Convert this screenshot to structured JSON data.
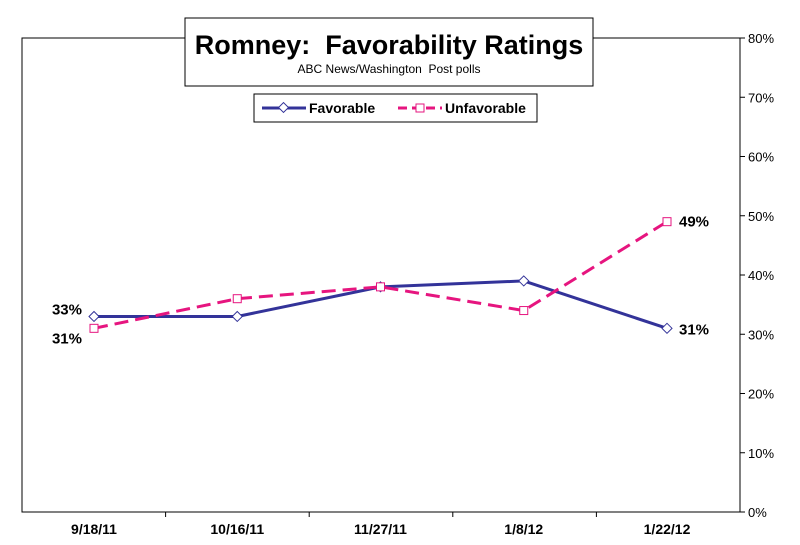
{
  "chart_data": {
    "type": "line",
    "title": "Romney:  Favorability Ratings",
    "subtitle": "ABC News/Washington  Post polls",
    "categories": [
      "9/18/11",
      "10/16/11",
      "11/27/11",
      "1/8/12",
      "1/22/12"
    ],
    "series": [
      {
        "name": "Favorable",
        "values": [
          33,
          33,
          38,
          39,
          31
        ],
        "color": "#333399",
        "dash": "solid",
        "marker": "diamond"
      },
      {
        "name": "Unfavorable",
        "values": [
          31,
          36,
          38,
          34,
          49
        ],
        "color": "#e6157f",
        "dash": "dashed",
        "marker": "square"
      }
    ],
    "ylim": [
      0,
      80
    ],
    "yticks": [
      0,
      10,
      20,
      30,
      40,
      50,
      60,
      70,
      80
    ],
    "ytick_labels": [
      "0%",
      "10%",
      "20%",
      "30%",
      "40%",
      "50%",
      "60%",
      "70%",
      "80%"
    ],
    "y_axis_side": "right",
    "legend_position": "top-center",
    "data_labels": [
      {
        "series": 0,
        "index": 0,
        "text": "33%",
        "side": "left"
      },
      {
        "series": 1,
        "index": 0,
        "text": "31%",
        "side": "left"
      },
      {
        "series": 1,
        "index": 4,
        "text": "49%",
        "side": "right"
      },
      {
        "series": 0,
        "index": 4,
        "text": "31%",
        "side": "right"
      }
    ],
    "grid": false
  }
}
